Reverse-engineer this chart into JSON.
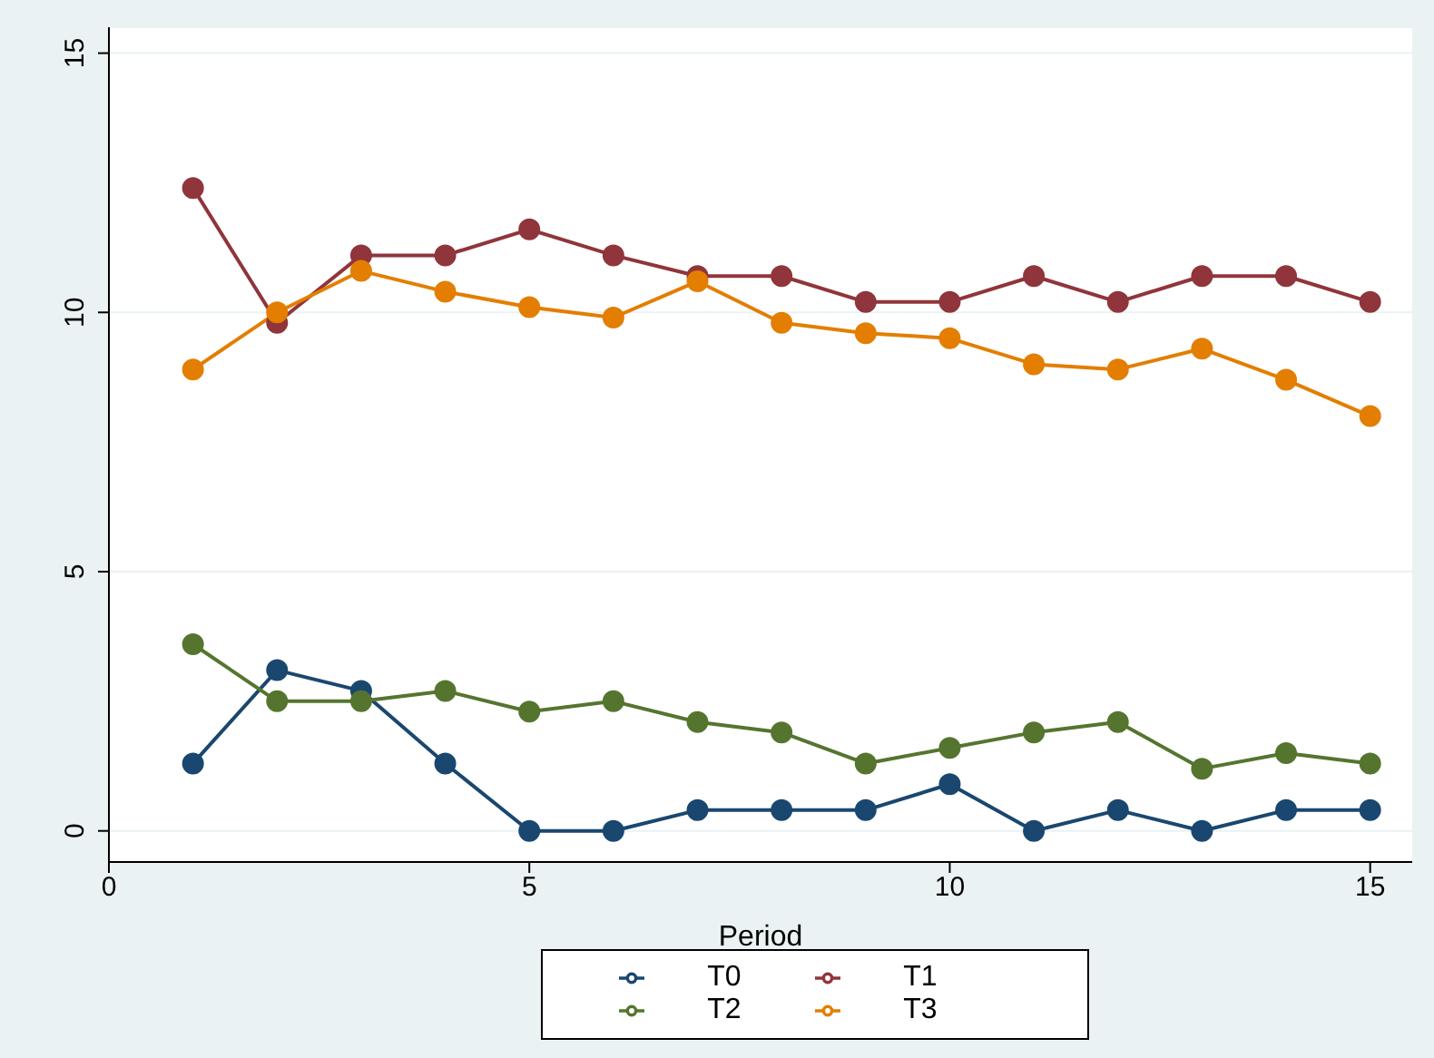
{
  "chart_data": {
    "type": "line",
    "xlabel": "Period",
    "x": [
      1,
      2,
      3,
      4,
      5,
      6,
      7,
      8,
      9,
      10,
      11,
      12,
      13,
      14,
      15
    ],
    "series": [
      {
        "name": "T0",
        "color": "#1a476f",
        "values": [
          1.3,
          3.1,
          2.7,
          1.3,
          0,
          0,
          0.4,
          0.4,
          0.4,
          0.9,
          0,
          0.4,
          0,
          0.4,
          0.4
        ]
      },
      {
        "name": "T1",
        "color": "#90353b",
        "values": [
          12.4,
          9.8,
          11.1,
          11.1,
          11.6,
          11.1,
          10.7,
          10.7,
          10.2,
          10.2,
          10.7,
          10.2,
          10.7,
          10.7,
          10.2
        ]
      },
      {
        "name": "T2",
        "color": "#55752f",
        "values": [
          3.6,
          2.5,
          2.5,
          2.7,
          2.3,
          2.5,
          2.1,
          1.9,
          1.3,
          1.6,
          1.9,
          2.1,
          1.2,
          1.5,
          1.3
        ]
      },
      {
        "name": "T3",
        "color": "#e37e00",
        "values": [
          8.9,
          10,
          10.8,
          10.4,
          10.1,
          9.9,
          10.6,
          9.8,
          9.6,
          9.5,
          9,
          8.9,
          9.3,
          8.7,
          8
        ]
      }
    ],
    "xlim": [
      0,
      15.5
    ],
    "xticks": [
      0,
      5,
      10,
      15
    ],
    "ylim": [
      -0.6,
      15.5
    ],
    "yticks": [
      0,
      5,
      10,
      15
    ],
    "grid": "y",
    "legend": "bottom",
    "marker": "circle",
    "line_style": "solid"
  }
}
